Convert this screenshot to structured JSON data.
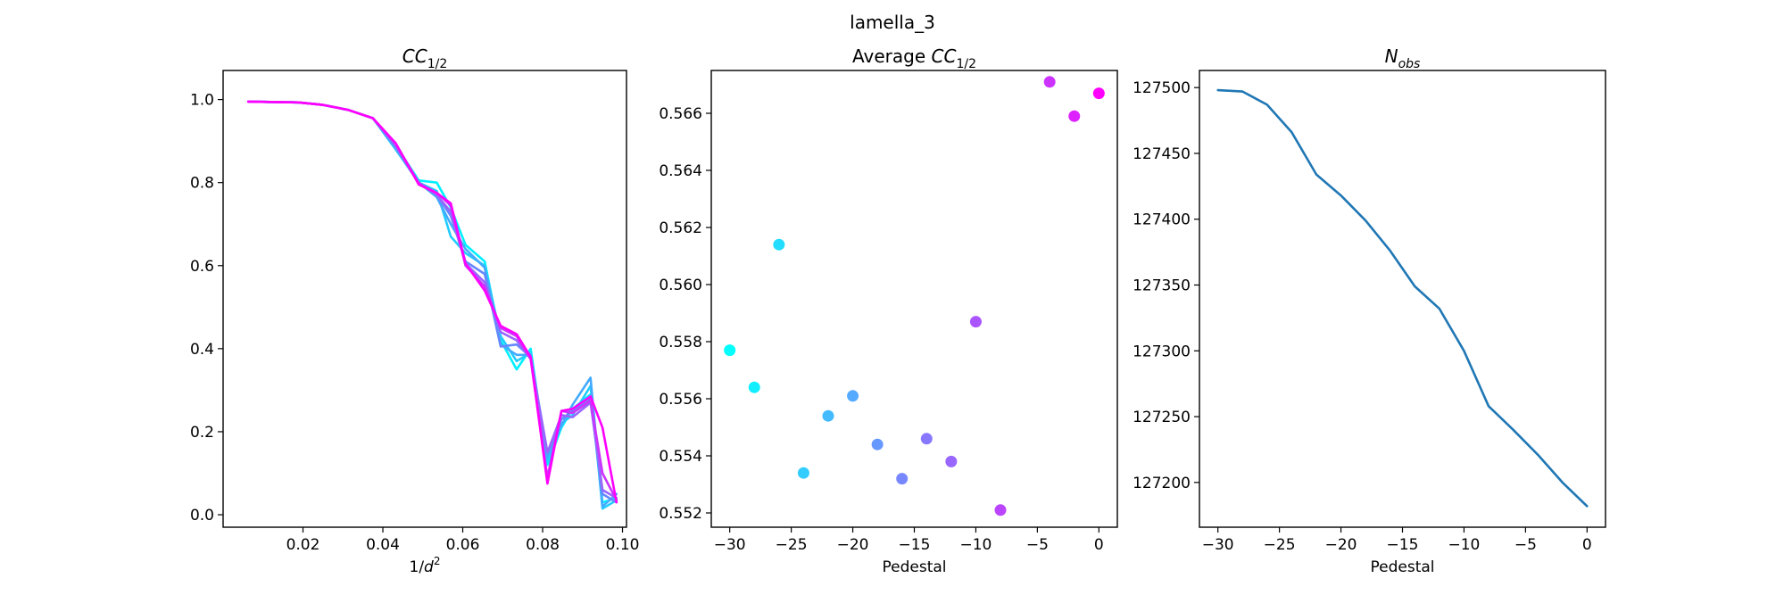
{
  "figure": {
    "suptitle": "lamella_3"
  },
  "chart_data": [
    {
      "type": "line",
      "title": "CC",
      "title_sub": "1/2",
      "xlabel": "1/",
      "xlabel_var": "d",
      "xlabel_sup": "2",
      "ylabel": "",
      "xlim": [
        0.0,
        0.101
      ],
      "ylim": [
        -0.03,
        1.07
      ],
      "xticks": [
        0.02,
        0.04,
        0.06,
        0.08,
        0.1
      ],
      "xtick_labels": [
        "0.02",
        "0.04",
        "0.06",
        "0.08",
        "0.10"
      ],
      "yticks": [
        0.0,
        0.2,
        0.4,
        0.6,
        0.8,
        1.0
      ],
      "ytick_labels": [
        "0.0",
        "0.2",
        "0.4",
        "0.6",
        "0.8",
        "1.0"
      ],
      "grid": false,
      "x": [
        0.0063,
        0.0188,
        0.025,
        0.0313,
        0.0375,
        0.0432,
        0.049,
        0.0535,
        0.057,
        0.0607,
        0.0655,
        0.0695,
        0.0735,
        0.077,
        0.0812,
        0.0847,
        0.0875,
        0.092,
        0.095,
        0.0985
      ],
      "series": [
        {
          "color": "#00f0ff",
          "values": [
            0.995,
            0.993,
            0.987,
            0.975,
            0.955,
            0.89,
            0.805,
            0.8,
            0.74,
            0.65,
            0.61,
            0.42,
            0.35,
            0.4,
            0.12,
            0.21,
            0.255,
            0.29,
            0.03,
            0.04
          ]
        },
        {
          "color": "#22ccff",
          "values": [
            0.995,
            0.993,
            0.987,
            0.975,
            0.955,
            0.88,
            0.8,
            0.78,
            0.67,
            0.63,
            0.6,
            0.43,
            0.37,
            0.39,
            0.13,
            0.22,
            0.24,
            0.31,
            0.015,
            0.035
          ]
        },
        {
          "color": "#44aaff",
          "values": [
            0.995,
            0.993,
            0.987,
            0.975,
            0.955,
            0.885,
            0.8,
            0.765,
            0.7,
            0.64,
            0.595,
            0.41,
            0.385,
            0.385,
            0.14,
            0.215,
            0.265,
            0.33,
            0.02,
            0.05
          ]
        },
        {
          "color": "#6688ff",
          "values": [
            0.995,
            0.993,
            0.987,
            0.975,
            0.955,
            0.885,
            0.798,
            0.77,
            0.72,
            0.61,
            0.58,
            0.405,
            0.41,
            0.38,
            0.15,
            0.23,
            0.25,
            0.28,
            0.05,
            0.03
          ]
        },
        {
          "color": "#9966ff",
          "values": [
            0.995,
            0.993,
            0.987,
            0.975,
            0.955,
            0.89,
            0.8,
            0.77,
            0.73,
            0.605,
            0.56,
            0.44,
            0.42,
            0.375,
            0.15,
            0.24,
            0.235,
            0.27,
            0.06,
            0.04
          ]
        },
        {
          "color": "#cc33ff",
          "values": [
            0.995,
            0.993,
            0.987,
            0.975,
            0.955,
            0.895,
            0.798,
            0.775,
            0.745,
            0.6,
            0.55,
            0.45,
            0.43,
            0.375,
            0.09,
            0.25,
            0.245,
            0.275,
            0.1,
            0.035
          ]
        },
        {
          "color": "#ff00ff",
          "values": [
            0.995,
            0.993,
            0.987,
            0.975,
            0.955,
            0.895,
            0.795,
            0.775,
            0.75,
            0.605,
            0.54,
            0.455,
            0.435,
            0.38,
            0.075,
            0.25,
            0.255,
            0.285,
            0.21,
            0.03
          ]
        }
      ]
    },
    {
      "type": "scatter",
      "title": "Average CC",
      "title_sub": "1/2",
      "xlabel": "Pedestal",
      "ylabel": "",
      "xlim": [
        -31.5,
        1.5
      ],
      "ylim": [
        0.5515,
        0.5675
      ],
      "xticks": [
        -30,
        -25,
        -20,
        -15,
        -10,
        -5,
        0
      ],
      "xtick_labels": [
        "−30",
        "−25",
        "−20",
        "−15",
        "−10",
        "−5",
        "0"
      ],
      "yticks": [
        0.552,
        0.554,
        0.556,
        0.558,
        0.56,
        0.562,
        0.564,
        0.566
      ],
      "ytick_labels": [
        "0.552",
        "0.554",
        "0.556",
        "0.558",
        "0.560",
        "0.562",
        "0.564",
        "0.566"
      ],
      "grid": false,
      "points": [
        {
          "x": -30,
          "y": 0.5577,
          "color": "#00ffff"
        },
        {
          "x": -28,
          "y": 0.5564,
          "color": "#11eeff"
        },
        {
          "x": -26,
          "y": 0.5614,
          "color": "#22ddff"
        },
        {
          "x": -24,
          "y": 0.5534,
          "color": "#33ccff"
        },
        {
          "x": -22,
          "y": 0.5554,
          "color": "#44bbff"
        },
        {
          "x": -20,
          "y": 0.5561,
          "color": "#55aaff"
        },
        {
          "x": -18,
          "y": 0.5544,
          "color": "#6699ff"
        },
        {
          "x": -16,
          "y": 0.5532,
          "color": "#7788ff"
        },
        {
          "x": -14,
          "y": 0.5546,
          "color": "#8877ff"
        },
        {
          "x": -12,
          "y": 0.5538,
          "color": "#9966ff"
        },
        {
          "x": -10,
          "y": 0.5587,
          "color": "#aa55ff"
        },
        {
          "x": -8,
          "y": 0.5521,
          "color": "#bb44ff"
        },
        {
          "x": -4,
          "y": 0.5671,
          "color": "#cc33ff"
        },
        {
          "x": -2,
          "y": 0.5659,
          "color": "#dd22ff"
        },
        {
          "x": 0,
          "y": 0.5667,
          "color": "#ff00ff"
        }
      ]
    },
    {
      "type": "line",
      "title": "N",
      "title_sub": "obs",
      "xlabel": "Pedestal",
      "ylabel": "",
      "xlim": [
        -31.5,
        1.5
      ],
      "ylim": [
        127166,
        127513
      ],
      "xticks": [
        -30,
        -25,
        -20,
        -15,
        -10,
        -5,
        0
      ],
      "xtick_labels": [
        "−30",
        "−25",
        "−20",
        "−15",
        "−10",
        "−5",
        "0"
      ],
      "yticks": [
        127200,
        127250,
        127300,
        127350,
        127400,
        127450,
        127500
      ],
      "ytick_labels": [
        "127200",
        "127250",
        "127300",
        "127350",
        "127400",
        "127450",
        "127500"
      ],
      "grid": false,
      "x": [
        -30,
        -28,
        -26,
        -24,
        -22,
        -20,
        -18,
        -16,
        -14,
        -12,
        -10,
        -8,
        -6,
        -4,
        -2,
        0
      ],
      "series": [
        {
          "color": "#1f77b4",
          "values": [
            127498,
            127497,
            127487,
            127466,
            127434,
            127418,
            127399,
            127376,
            127349,
            127332,
            127300,
            127258,
            127240,
            127221,
            127200,
            127182
          ]
        }
      ]
    }
  ]
}
